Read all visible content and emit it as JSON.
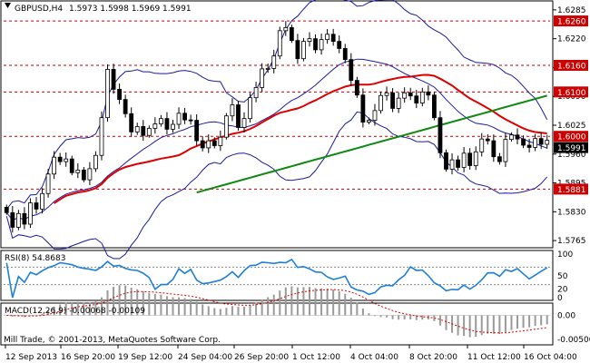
{
  "header": {
    "symbol": "GBPUSD,H4",
    "ohlc": "1.5973 1.5998 1.5969 1.5991"
  },
  "footer": {
    "copyright": "Mill Trade, © 2001-2013, MetaQuotes Software Corp."
  },
  "panes": {
    "rsi": {
      "label": "RSI(8) 54.8683",
      "ticks": [
        {
          "value": 100,
          "label": "100"
        },
        {
          "value": 50,
          "label": "50"
        },
        {
          "value": 20,
          "label": "20"
        },
        {
          "value": 0,
          "label": "0"
        }
      ]
    },
    "macd": {
      "label": "MACD(12,26,9) -0.00068 -0.00109",
      "ticks": [
        {
          "value": 0.0,
          "label": "0.00"
        },
        {
          "value": -0.005,
          "label": "-0.00500"
        }
      ]
    }
  },
  "chart_data": {
    "type": "candlestick",
    "symbol": "GBPUSD",
    "timeframe": "H4",
    "price_range": [
      1.5755,
      1.6297
    ],
    "price_axis_ticks": [
      {
        "value": 1.6285,
        "label": "1.6285"
      },
      {
        "value": 1.622,
        "label": "1.6220"
      },
      {
        "value": 1.6155,
        "label": "1.6155"
      },
      {
        "value": 1.609,
        "label": "1.6090"
      },
      {
        "value": 1.6025,
        "label": "1.6025"
      },
      {
        "value": 1.596,
        "label": "1.5960"
      },
      {
        "value": 1.5895,
        "label": "1.5895"
      },
      {
        "value": 1.583,
        "label": "1.5830"
      },
      {
        "value": 1.5765,
        "label": "1.5765"
      }
    ],
    "levels": [
      {
        "value": 1.626,
        "label": "1.6260",
        "color": "#cc0000"
      },
      {
        "value": 1.616,
        "label": "1.6160",
        "color": "#cc0000"
      },
      {
        "value": 1.61,
        "label": "1.6100",
        "color": "#cc0000"
      },
      {
        "value": 1.6,
        "label": "1.6000",
        "color": "#cc0000"
      },
      {
        "value": 1.5881,
        "label": "1.5881",
        "color": "#cc0000"
      }
    ],
    "current_price": {
      "value": 1.5991,
      "label": "1.5991"
    },
    "time_axis": [
      "12 Sep 2013",
      "16 Sep 20:00",
      "19 Sep 12:00",
      "24 Sep 04:00",
      "26 Sep 20:00",
      "1 Oct 12:00",
      "4 Oct 04:00",
      "8 Oct 20:00",
      "11 Oct 12:00",
      "16 Oct 04:00"
    ],
    "closes": [
      1.5828,
      1.5795,
      1.5826,
      1.5802,
      1.585,
      1.5836,
      1.5871,
      1.5915,
      1.5953,
      1.5943,
      1.5949,
      1.5918,
      1.5924,
      1.5902,
      1.5927,
      1.5957,
      1.6042,
      1.6151,
      1.6106,
      1.6083,
      1.6051,
      1.601,
      1.6022,
      1.6002,
      1.6018,
      1.6028,
      1.604,
      1.6016,
      1.6027,
      1.6052,
      1.6037,
      1.6036,
      1.599,
      1.5974,
      1.599,
      1.5979,
      1.5998,
      1.6046,
      1.6071,
      1.602,
      1.604,
      1.6087,
      1.611,
      1.6152,
      1.6153,
      1.6181,
      1.6238,
      1.6245,
      1.6216,
      1.6175,
      1.6214,
      1.622,
      1.6195,
      1.6218,
      1.623,
      1.6214,
      1.6198,
      1.6173,
      1.6126,
      1.6093,
      1.6032,
      1.6036,
      1.6058,
      1.6092,
      1.6098,
      1.6063,
      1.6086,
      1.6098,
      1.6091,
      1.6075,
      1.61,
      1.6093,
      1.6042,
      1.5963,
      1.5926,
      1.5947,
      1.593,
      1.5962,
      1.5934,
      1.5965,
      1.5994,
      1.599,
      1.5954,
      1.5943,
      1.5993,
      1.6003,
      1.5994,
      1.598,
      1.5975,
      1.5995,
      1.5982,
      1.5991
    ],
    "indicators": [
      {
        "name": "SMA (red)",
        "color": "#dd0000"
      },
      {
        "name": "SMA (green)",
        "color": "#118811"
      },
      {
        "name": "Bollinger Bands",
        "color": "#1a1aa0"
      }
    ],
    "rsi_range": [
      0,
      100
    ],
    "rsi_levels": [
      30,
      70
    ],
    "macd_range": [
      -0.0058,
      0.0018
    ]
  }
}
